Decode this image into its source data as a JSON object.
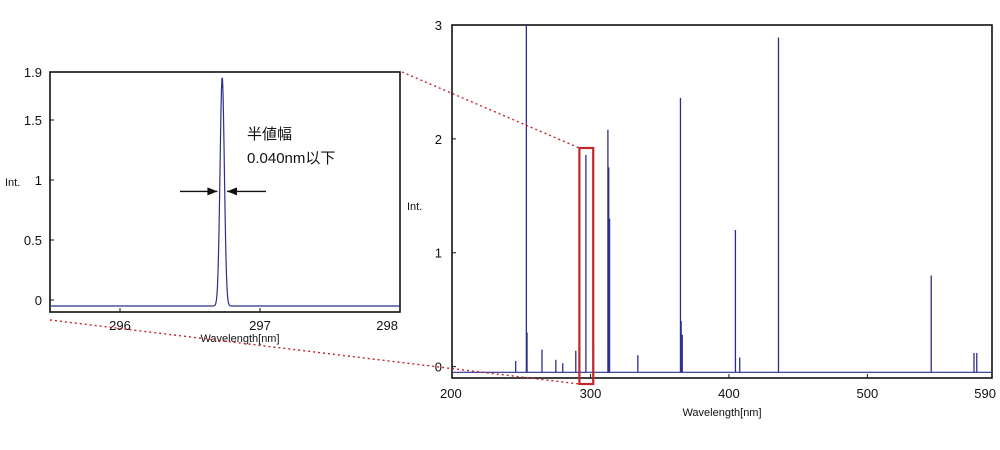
{
  "chart_data": [
    {
      "type": "line",
      "panel": "zoom",
      "xlabel": "Wavelength[nm]",
      "ylabel": "Int.",
      "xlim": [
        295.5,
        298
      ],
      "ylim": [
        -0.1,
        1.9
      ],
      "x_ticks": [
        "296",
        "297",
        "298"
      ],
      "y_ticks": [
        "0",
        "0.5",
        "1",
        "1.5",
        "1.9"
      ],
      "peak": {
        "x": 296.73,
        "y": 1.86,
        "baseline": -0.05,
        "fwhm": 0.04
      },
      "annotation": {
        "line1": "半値幅",
        "line2": "0.040nm以下"
      }
    },
    {
      "type": "line",
      "panel": "full",
      "xlabel": "Wavelength[nm]",
      "ylabel": "Int.",
      "xlim": [
        200,
        590
      ],
      "ylim": [
        -0.1,
        3
      ],
      "x_ticks": [
        "200",
        "300",
        "400",
        "500",
        "590"
      ],
      "y_ticks": [
        "0",
        "1",
        "2",
        "3"
      ],
      "peaks": [
        {
          "x": 253.7,
          "y": 3.0
        },
        {
          "x": 254.2,
          "y": 0.3
        },
        {
          "x": 246,
          "y": 0.05
        },
        {
          "x": 265,
          "y": 0.15
        },
        {
          "x": 275,
          "y": 0.06
        },
        {
          "x": 280,
          "y": 0.03
        },
        {
          "x": 289.4,
          "y": 0.14
        },
        {
          "x": 296.7,
          "y": 1.86
        },
        {
          "x": 302.2,
          "y": 0.2
        },
        {
          "x": 312.6,
          "y": 2.08
        },
        {
          "x": 313.2,
          "y": 1.75
        },
        {
          "x": 313.8,
          "y": 1.3
        },
        {
          "x": 334.2,
          "y": 0.1
        },
        {
          "x": 365,
          "y": 2.36
        },
        {
          "x": 365.5,
          "y": 0.4
        },
        {
          "x": 366.3,
          "y": 0.28
        },
        {
          "x": 404.7,
          "y": 1.2
        },
        {
          "x": 407.8,
          "y": 0.08
        },
        {
          "x": 435.8,
          "y": 2.89
        },
        {
          "x": 546.1,
          "y": 0.8
        },
        {
          "x": 577,
          "y": 0.12
        },
        {
          "x": 579,
          "y": 0.12
        }
      ],
      "highlight_range": [
        292,
        302
      ]
    }
  ]
}
